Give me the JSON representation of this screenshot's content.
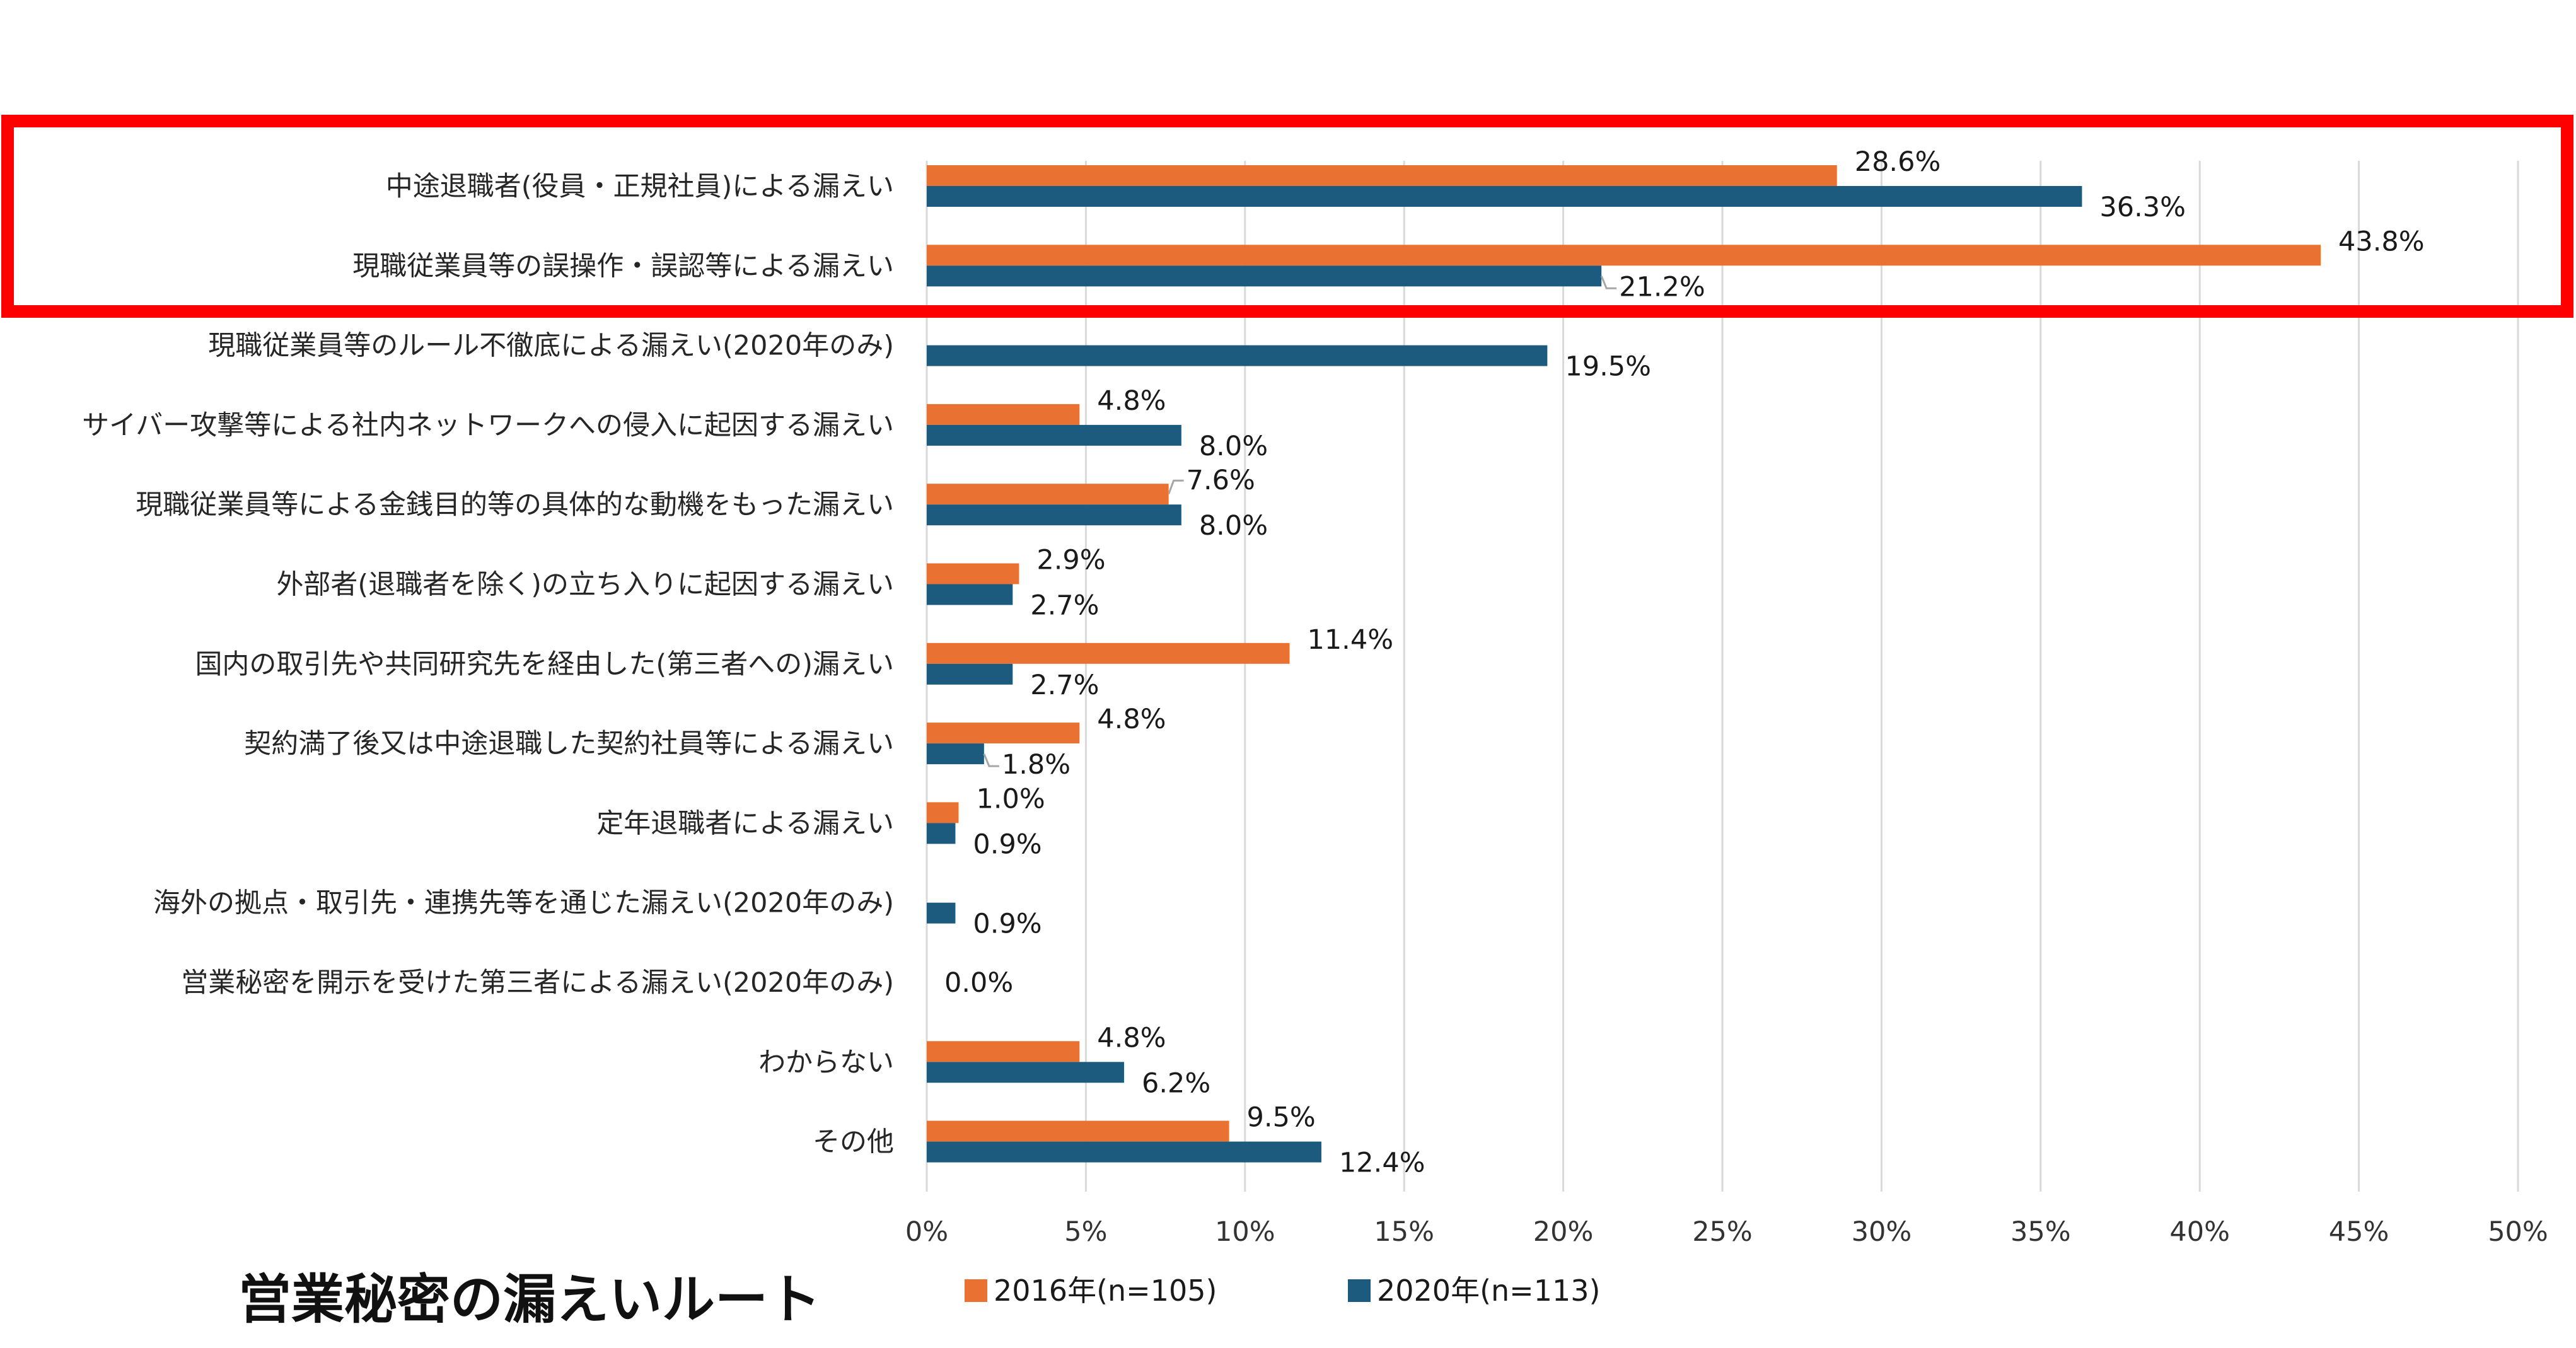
{
  "chart_data": {
    "type": "bar",
    "orientation": "horizontal",
    "title": "営業秘密の漏えいルート",
    "categories": [
      "中途退職者(役員・正規社員)による漏えい",
      "現職従業員等の誤操作・誤認等による漏えい",
      "現職従業員等のルール不徹底による漏えい(2020年のみ)",
      "サイバー攻撃等による社内ネットワークへの侵入に起因する漏えい",
      "現職従業員等による金銭目的等の具体的な動機をもった漏えい",
      "外部者(退職者を除く)の立ち入りに起因する漏えい",
      "国内の取引先や共同研究先を経由した(第三者への)漏えい",
      "契約満了後又は中途退職した契約社員等による漏えい",
      "定年退職者による漏えい",
      "海外の拠点・取引先・連携先等を通じた漏えい(2020年のみ)",
      "営業秘密を開示を受けた第三者による漏えい(2020年のみ)",
      "わからない",
      "その他"
    ],
    "series": [
      {
        "name": "2016年(n=105)",
        "color": "#E97132",
        "values": [
          28.6,
          43.8,
          null,
          4.8,
          7.6,
          2.9,
          11.4,
          4.8,
          1.0,
          null,
          null,
          4.8,
          9.5
        ],
        "labels": [
          "28.6%",
          "43.8%",
          "",
          "4.8%",
          "7.6%",
          "2.9%",
          "11.4%",
          "4.8%",
          "1.0%",
          "",
          "",
          "4.8%",
          "9.5%"
        ]
      },
      {
        "name": "2020年(n=113)",
        "color": "#1C5A7E",
        "values": [
          36.3,
          21.2,
          19.5,
          8.0,
          8.0,
          2.7,
          2.7,
          1.8,
          0.9,
          0.9,
          0.0,
          6.2,
          12.4
        ],
        "labels": [
          "36.3%",
          "21.2%",
          "19.5%",
          "8.0%",
          "8.0%",
          "2.7%",
          "2.7%",
          "1.8%",
          "0.9%",
          "0.9%",
          "0.0%",
          "6.2%",
          "12.4%"
        ]
      }
    ],
    "xlim": [
      0,
      50
    ],
    "xticks": [
      "0%",
      "5%",
      "10%",
      "15%",
      "20%",
      "25%",
      "30%",
      "35%",
      "40%",
      "45%",
      "50%"
    ],
    "grid": "vertical",
    "legend_position": "bottom",
    "highlight": {
      "color": "#FF0000",
      "categories": [
        0,
        1
      ]
    }
  }
}
